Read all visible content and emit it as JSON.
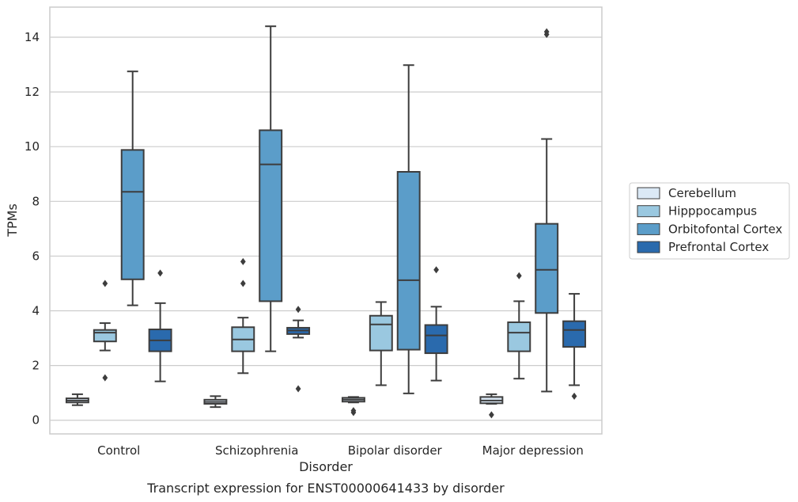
{
  "caption": "Transcript expression for ENST00000641433 by disorder",
  "chart_data": {
    "type": "box",
    "xlabel": "Disorder",
    "ylabel": "TPMs",
    "ylim": [
      -0.5,
      15.1
    ],
    "yticks": [
      0,
      2,
      4,
      6,
      8,
      10,
      12,
      14
    ],
    "grid": true,
    "legend_position": "right",
    "categories": [
      "Control",
      "Schizophrenia",
      "Bipolar disorder",
      "Major depression"
    ],
    "series": [
      {
        "name": "Cerebellum",
        "color": "#dbe9f6",
        "boxes": [
          {
            "whislo": 0.55,
            "q1": 0.65,
            "med": 0.72,
            "q3": 0.8,
            "whishi": 0.95,
            "fliers": []
          },
          {
            "whislo": 0.48,
            "q1": 0.6,
            "med": 0.67,
            "q3": 0.75,
            "whishi": 0.88,
            "fliers": []
          },
          {
            "whislo": 0.65,
            "q1": 0.68,
            "med": 0.75,
            "q3": 0.82,
            "whishi": 0.85,
            "fliers": [
              0.28,
              0.35
            ]
          },
          {
            "whislo": 0.6,
            "q1": 0.62,
            "med": 0.72,
            "q3": 0.85,
            "whishi": 0.95,
            "fliers": [
              0.2
            ]
          }
        ]
      },
      {
        "name": "Hipppocampus",
        "color": "#9ac8e0",
        "boxes": [
          {
            "whislo": 2.55,
            "q1": 2.88,
            "med": 3.2,
            "q3": 3.3,
            "whishi": 3.55,
            "fliers": [
              5.0,
              1.55
            ]
          },
          {
            "whislo": 1.72,
            "q1": 2.52,
            "med": 2.95,
            "q3": 3.4,
            "whishi": 3.75,
            "fliers": [
              5.8,
              5.0
            ]
          },
          {
            "whislo": 1.28,
            "q1": 2.55,
            "med": 3.5,
            "q3": 3.82,
            "whishi": 4.32,
            "fliers": []
          },
          {
            "whislo": 1.52,
            "q1": 2.52,
            "med": 3.2,
            "q3": 3.58,
            "whishi": 4.35,
            "fliers": [
              5.28
            ]
          }
        ]
      },
      {
        "name": "Orbitofontal Cortex",
        "color": "#5b9dc9",
        "boxes": [
          {
            "whislo": 4.2,
            "q1": 5.15,
            "med": 8.35,
            "q3": 9.88,
            "whishi": 12.75,
            "fliers": []
          },
          {
            "whislo": 2.52,
            "q1": 4.35,
            "med": 9.35,
            "q3": 10.6,
            "whishi": 14.4,
            "fliers": []
          },
          {
            "whislo": 0.98,
            "q1": 2.58,
            "med": 5.12,
            "q3": 9.08,
            "whishi": 12.98,
            "fliers": []
          },
          {
            "whislo": 1.05,
            "q1": 3.92,
            "med": 5.5,
            "q3": 7.18,
            "whishi": 10.28,
            "fliers": [
              14.1,
              14.2
            ]
          }
        ]
      },
      {
        "name": "Prefrontal Cortex",
        "color": "#2a6aad",
        "boxes": [
          {
            "whislo": 1.42,
            "q1": 2.52,
            "med": 2.92,
            "q3": 3.32,
            "whishi": 4.28,
            "fliers": [
              5.38
            ]
          },
          {
            "whislo": 3.02,
            "q1": 3.15,
            "med": 3.28,
            "q3": 3.38,
            "whishi": 3.65,
            "fliers": [
              4.05,
              1.15
            ]
          },
          {
            "whislo": 1.45,
            "q1": 2.45,
            "med": 3.1,
            "q3": 3.48,
            "whishi": 4.15,
            "fliers": [
              5.5
            ]
          },
          {
            "whislo": 1.28,
            "q1": 2.68,
            "med": 3.3,
            "q3": 3.62,
            "whishi": 4.62,
            "fliers": [
              0.88
            ]
          }
        ]
      }
    ]
  }
}
